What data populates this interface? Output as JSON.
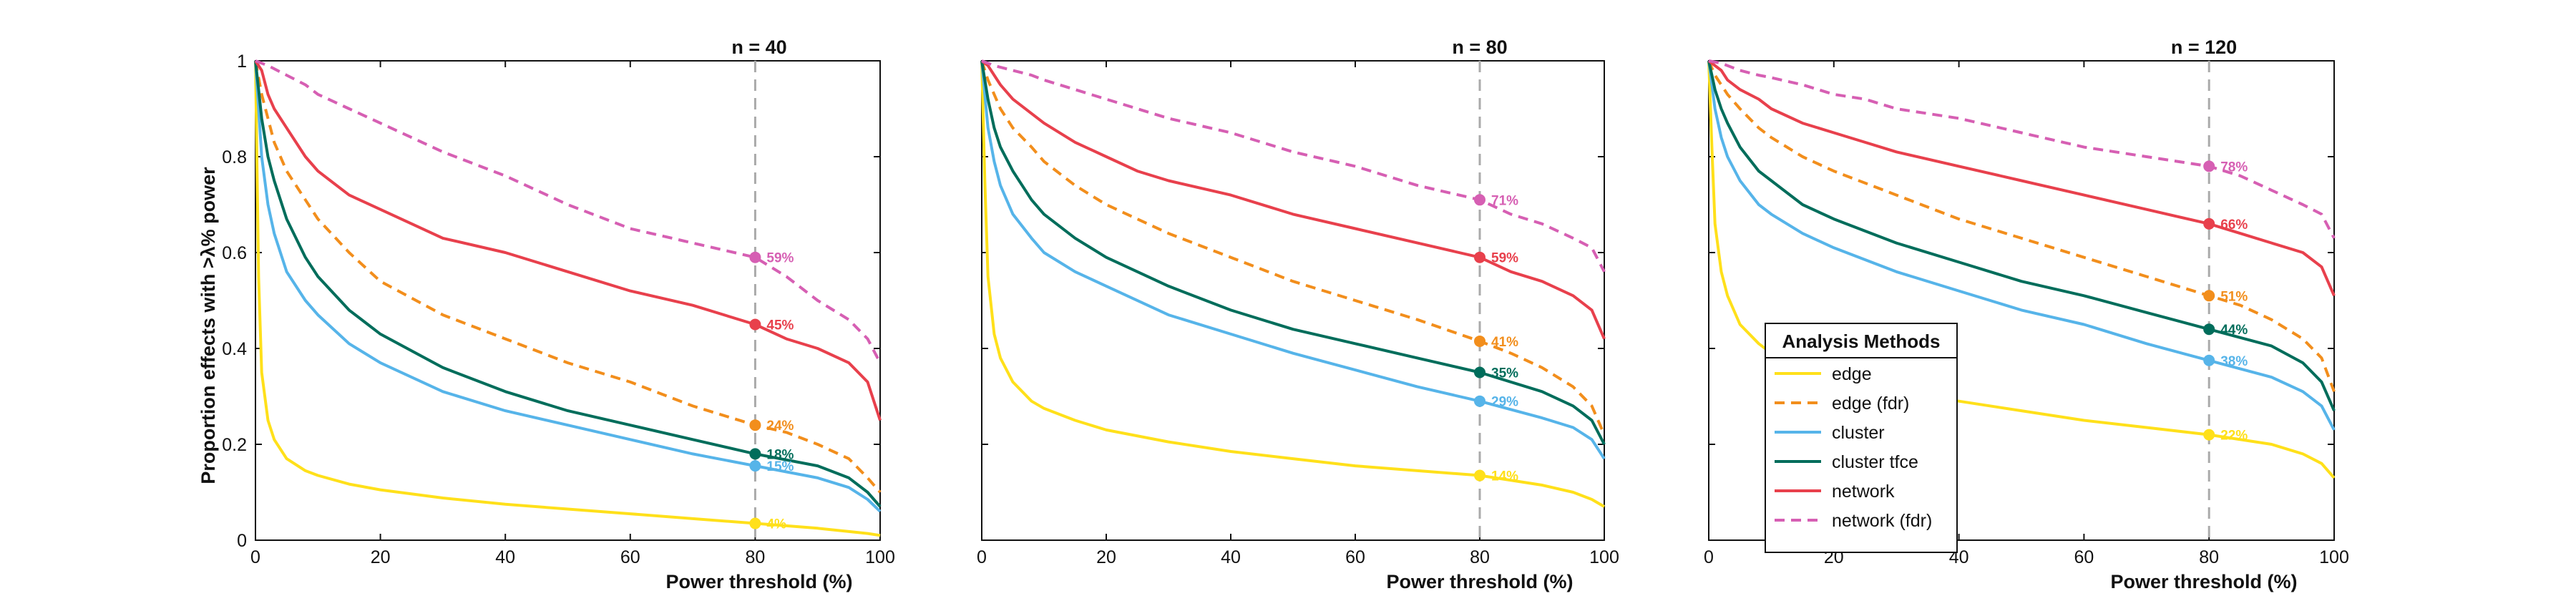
{
  "figure": {
    "ylabel": "Proportion effects with >λ% power",
    "xlabel": "Power threshold (%)",
    "legend_title": "Analysis Methods"
  },
  "series_styles": [
    {
      "name": "edge",
      "color": "#FFE01A",
      "dash": "solid"
    },
    {
      "name": "edge (fdr)",
      "color": "#F28E1C",
      "dash": "dashed"
    },
    {
      "name": "cluster",
      "color": "#56B4E9",
      "dash": "solid"
    },
    {
      "name": "cluster tfce",
      "color": "#006D5B",
      "dash": "solid"
    },
    {
      "name": "network",
      "color": "#E8404C",
      "dash": "solid"
    },
    {
      "name": "network (fdr)",
      "color": "#D65FB3",
      "dash": "dashed"
    }
  ],
  "chart_data": [
    {
      "type": "line",
      "title": "n = 40",
      "xlim": [
        0,
        100
      ],
      "ylim": [
        0,
        1
      ],
      "xticks": [
        0,
        20,
        40,
        60,
        80,
        100
      ],
      "yticks": [
        0,
        0.2,
        0.4,
        0.6,
        0.8,
        1
      ],
      "ytick_labels": [
        "0",
        "0.2",
        "0.4",
        "0.6",
        "0.8",
        "1"
      ],
      "marker_x": 80,
      "series": [
        {
          "name": "edge",
          "x": [
            0,
            0.5,
            1,
            2,
            3,
            5,
            8,
            10,
            15,
            20,
            30,
            40,
            50,
            60,
            70,
            80,
            90,
            95,
            98,
            100
          ],
          "y": [
            1,
            0.55,
            0.35,
            0.25,
            0.21,
            0.17,
            0.145,
            0.135,
            0.117,
            0.105,
            0.088,
            0.075,
            0.065,
            0.055,
            0.045,
            0.035,
            0.025,
            0.018,
            0.014,
            0.01
          ],
          "label": "4%"
        },
        {
          "name": "edge (fdr)",
          "x": [
            0,
            1,
            3,
            5,
            8,
            10,
            15,
            20,
            30,
            40,
            50,
            60,
            70,
            80,
            85,
            90,
            95,
            98,
            100
          ],
          "y": [
            1,
            0.93,
            0.83,
            0.77,
            0.71,
            0.67,
            0.6,
            0.54,
            0.47,
            0.42,
            0.37,
            0.33,
            0.28,
            0.24,
            0.225,
            0.2,
            0.17,
            0.13,
            0.1
          ],
          "label": "24%"
        },
        {
          "name": "cluster",
          "x": [
            0,
            0.5,
            1,
            2,
            3,
            5,
            8,
            10,
            15,
            20,
            30,
            40,
            50,
            60,
            70,
            80,
            90,
            95,
            98,
            100
          ],
          "y": [
            1,
            0.9,
            0.8,
            0.7,
            0.64,
            0.56,
            0.5,
            0.47,
            0.41,
            0.37,
            0.31,
            0.27,
            0.24,
            0.21,
            0.18,
            0.155,
            0.13,
            0.11,
            0.085,
            0.06
          ],
          "label": "15%"
        },
        {
          "name": "cluster tfce",
          "x": [
            0,
            0.5,
            1,
            2,
            3,
            5,
            8,
            10,
            15,
            20,
            30,
            40,
            50,
            60,
            70,
            80,
            90,
            95,
            98,
            100
          ],
          "y": [
            1,
            0.94,
            0.88,
            0.8,
            0.75,
            0.67,
            0.59,
            0.55,
            0.48,
            0.43,
            0.36,
            0.31,
            0.27,
            0.24,
            0.21,
            0.18,
            0.155,
            0.13,
            0.1,
            0.07
          ],
          "label": "18%"
        },
        {
          "name": "network",
          "x": [
            0,
            1,
            2,
            3,
            5,
            8,
            10,
            15,
            20,
            25,
            30,
            40,
            50,
            60,
            70,
            80,
            85,
            90,
            95,
            98,
            100
          ],
          "y": [
            1,
            0.98,
            0.93,
            0.9,
            0.86,
            0.8,
            0.77,
            0.72,
            0.69,
            0.66,
            0.63,
            0.6,
            0.56,
            0.52,
            0.49,
            0.45,
            0.42,
            0.4,
            0.37,
            0.33,
            0.25
          ],
          "label": "45%"
        },
        {
          "name": "network (fdr)",
          "x": [
            0,
            2,
            5,
            8,
            10,
            15,
            20,
            25,
            30,
            40,
            50,
            60,
            70,
            80,
            85,
            90,
            95,
            98,
            100
          ],
          "y": [
            1,
            0.99,
            0.97,
            0.95,
            0.93,
            0.9,
            0.87,
            0.84,
            0.81,
            0.76,
            0.7,
            0.65,
            0.62,
            0.59,
            0.55,
            0.5,
            0.46,
            0.42,
            0.37
          ],
          "label": "59%"
        }
      ]
    },
    {
      "type": "line",
      "title": "n = 80",
      "xlim": [
        0,
        100
      ],
      "ylim": [
        0,
        1
      ],
      "xticks": [
        0,
        20,
        40,
        60,
        80,
        100
      ],
      "yticks": [
        0,
        0.2,
        0.4,
        0.6,
        0.8,
        1
      ],
      "ytick_labels": [],
      "marker_x": 80,
      "series": [
        {
          "name": "edge",
          "x": [
            0,
            0.5,
            1,
            2,
            3,
            5,
            8,
            10,
            15,
            20,
            30,
            40,
            50,
            60,
            70,
            80,
            90,
            95,
            98,
            100
          ],
          "y": [
            1,
            0.75,
            0.55,
            0.43,
            0.38,
            0.33,
            0.29,
            0.275,
            0.25,
            0.23,
            0.205,
            0.185,
            0.17,
            0.155,
            0.145,
            0.135,
            0.115,
            0.1,
            0.085,
            0.07
          ],
          "label": "14%"
        },
        {
          "name": "edge (fdr)",
          "x": [
            0,
            1,
            3,
            5,
            8,
            10,
            15,
            20,
            30,
            40,
            50,
            60,
            70,
            80,
            85,
            90,
            95,
            98,
            100
          ],
          "y": [
            1,
            0.96,
            0.9,
            0.86,
            0.82,
            0.79,
            0.74,
            0.7,
            0.64,
            0.59,
            0.54,
            0.5,
            0.46,
            0.415,
            0.39,
            0.36,
            0.32,
            0.28,
            0.22
          ],
          "label": "41%"
        },
        {
          "name": "cluster",
          "x": [
            0,
            0.5,
            1,
            2,
            3,
            5,
            8,
            10,
            15,
            20,
            30,
            40,
            50,
            60,
            70,
            80,
            90,
            95,
            98,
            100
          ],
          "y": [
            1,
            0.93,
            0.86,
            0.79,
            0.74,
            0.68,
            0.63,
            0.6,
            0.56,
            0.53,
            0.47,
            0.43,
            0.39,
            0.355,
            0.32,
            0.29,
            0.255,
            0.235,
            0.21,
            0.17
          ],
          "label": "29%"
        },
        {
          "name": "cluster tfce",
          "x": [
            0,
            0.5,
            1,
            2,
            3,
            5,
            8,
            10,
            15,
            20,
            30,
            40,
            50,
            60,
            70,
            80,
            90,
            95,
            98,
            100
          ],
          "y": [
            1,
            0.96,
            0.92,
            0.86,
            0.82,
            0.77,
            0.71,
            0.68,
            0.63,
            0.59,
            0.53,
            0.48,
            0.44,
            0.41,
            0.38,
            0.35,
            0.31,
            0.28,
            0.25,
            0.2
          ],
          "label": "35%"
        },
        {
          "name": "network",
          "x": [
            0,
            1,
            2,
            3,
            5,
            8,
            10,
            15,
            20,
            25,
            30,
            40,
            50,
            60,
            70,
            80,
            85,
            90,
            95,
            98,
            100
          ],
          "y": [
            1,
            0.99,
            0.97,
            0.95,
            0.92,
            0.89,
            0.87,
            0.83,
            0.8,
            0.77,
            0.75,
            0.72,
            0.68,
            0.65,
            0.62,
            0.59,
            0.56,
            0.54,
            0.51,
            0.48,
            0.42
          ],
          "label": "59%"
        },
        {
          "name": "network (fdr)",
          "x": [
            0,
            2,
            5,
            8,
            10,
            15,
            20,
            25,
            30,
            40,
            50,
            60,
            70,
            80,
            85,
            90,
            95,
            98,
            100
          ],
          "y": [
            1,
            0.99,
            0.98,
            0.97,
            0.96,
            0.94,
            0.92,
            0.9,
            0.88,
            0.85,
            0.81,
            0.78,
            0.74,
            0.71,
            0.68,
            0.66,
            0.63,
            0.61,
            0.56
          ],
          "label": "71%"
        }
      ]
    },
    {
      "type": "line",
      "title": "n = 120",
      "xlim": [
        0,
        100
      ],
      "ylim": [
        0,
        1
      ],
      "xticks": [
        0,
        20,
        40,
        60,
        80,
        100
      ],
      "yticks": [
        0,
        0.2,
        0.4,
        0.6,
        0.8,
        1
      ],
      "ytick_labels": [],
      "marker_x": 80,
      "series": [
        {
          "name": "edge",
          "x": [
            0,
            0.5,
            1,
            2,
            3,
            5,
            8,
            10,
            15,
            20,
            30,
            40,
            50,
            60,
            70,
            80,
            90,
            95,
            98,
            100
          ],
          "y": [
            1,
            0.82,
            0.66,
            0.56,
            0.51,
            0.45,
            0.41,
            0.39,
            0.36,
            0.34,
            0.31,
            0.29,
            0.27,
            0.25,
            0.235,
            0.22,
            0.2,
            0.18,
            0.16,
            0.13
          ],
          "label": "22%"
        },
        {
          "name": "edge (fdr)",
          "x": [
            0,
            1,
            3,
            5,
            8,
            10,
            15,
            20,
            30,
            40,
            50,
            60,
            70,
            80,
            85,
            90,
            95,
            98,
            100
          ],
          "y": [
            1,
            0.97,
            0.93,
            0.9,
            0.86,
            0.84,
            0.8,
            0.77,
            0.72,
            0.67,
            0.63,
            0.59,
            0.55,
            0.51,
            0.49,
            0.46,
            0.42,
            0.38,
            0.31
          ],
          "label": "51%"
        },
        {
          "name": "cluster",
          "x": [
            0,
            0.5,
            1,
            2,
            3,
            5,
            8,
            10,
            15,
            20,
            30,
            40,
            50,
            60,
            70,
            80,
            90,
            95,
            98,
            100
          ],
          "y": [
            1,
            0.95,
            0.9,
            0.84,
            0.8,
            0.75,
            0.7,
            0.68,
            0.64,
            0.61,
            0.56,
            0.52,
            0.48,
            0.45,
            0.41,
            0.375,
            0.34,
            0.31,
            0.28,
            0.23
          ],
          "label": "38%"
        },
        {
          "name": "cluster tfce",
          "x": [
            0,
            0.5,
            1,
            2,
            3,
            5,
            8,
            10,
            15,
            20,
            30,
            40,
            50,
            60,
            70,
            80,
            90,
            95,
            98,
            100
          ],
          "y": [
            1,
            0.97,
            0.94,
            0.9,
            0.87,
            0.82,
            0.77,
            0.75,
            0.7,
            0.67,
            0.62,
            0.58,
            0.54,
            0.51,
            0.475,
            0.44,
            0.405,
            0.37,
            0.33,
            0.27
          ],
          "label": "44%"
        },
        {
          "name": "network",
          "x": [
            0,
            1,
            2,
            3,
            5,
            8,
            10,
            15,
            20,
            25,
            30,
            40,
            50,
            60,
            70,
            80,
            85,
            90,
            95,
            98,
            100
          ],
          "y": [
            1,
            0.99,
            0.98,
            0.96,
            0.94,
            0.92,
            0.9,
            0.87,
            0.85,
            0.83,
            0.81,
            0.78,
            0.75,
            0.72,
            0.69,
            0.66,
            0.64,
            0.62,
            0.6,
            0.57,
            0.51
          ],
          "label": "66%"
        },
        {
          "name": "network (fdr)",
          "x": [
            0,
            2,
            5,
            8,
            10,
            15,
            20,
            25,
            30,
            40,
            50,
            60,
            70,
            80,
            85,
            90,
            95,
            98,
            100
          ],
          "y": [
            1,
            0.995,
            0.98,
            0.97,
            0.965,
            0.95,
            0.93,
            0.92,
            0.9,
            0.88,
            0.85,
            0.82,
            0.8,
            0.78,
            0.76,
            0.73,
            0.7,
            0.68,
            0.63
          ],
          "label": "78%"
        }
      ],
      "legend": {
        "placement": "lower-left"
      }
    }
  ]
}
